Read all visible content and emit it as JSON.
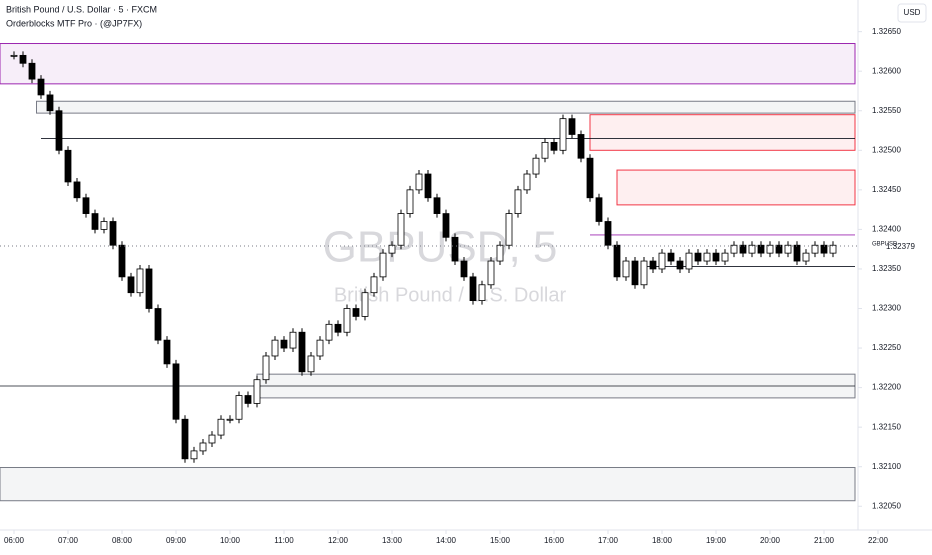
{
  "chart_data": {
    "type": "candlestick",
    "title": "British Pound / U.S. Dollar · 5 · FXCM",
    "subtitle": "Orderblocks MTF Pro · (@JP7FX)",
    "watermark": "GBPUSD, 5",
    "watermark_subtitle": "British Pound / U.S. Dollar",
    "currency": "USD",
    "symbol": "GBPUSD",
    "last_price": {
      "value": 1.32379,
      "label": "1.32379"
    },
    "closes": [
      1.3262,
      1.3261,
      1.3259,
      1.3257,
      1.3255,
      1.325,
      1.3246,
      1.3244,
      1.3242,
      1.324,
      1.3241,
      1.3238,
      1.3234,
      1.3232,
      1.3235,
      1.323,
      1.3226,
      1.3223,
      1.3216,
      1.3211,
      1.3212,
      1.3213,
      1.3214,
      1.3216,
      1.3216,
      1.3219,
      1.3218,
      1.3221,
      1.3224,
      1.3226,
      1.3225,
      1.3227,
      1.3222,
      1.3224,
      1.3226,
      1.3228,
      1.3227,
      1.323,
      1.3229,
      1.3232,
      1.3234,
      1.3237,
      1.3238,
      1.3242,
      1.3245,
      1.3247,
      1.3244,
      1.3242,
      1.3239,
      1.3236,
      1.3234,
      1.3231,
      1.3233,
      1.3236,
      1.3238,
      1.3242,
      1.3245,
      1.3247,
      1.3249,
      1.3251,
      1.325,
      1.3254,
      1.3252,
      1.3249,
      1.3244,
      1.3241,
      1.3238,
      1.3234,
      1.3236,
      1.3233,
      1.3236,
      1.3235,
      1.3237,
      1.3236,
      1.3235,
      1.3237,
      1.3236,
      1.3237,
      1.3236,
      1.3237,
      1.3238,
      1.3237,
      1.3238,
      1.3237,
      1.3238,
      1.3237,
      1.3238,
      1.3236,
      1.3237,
      1.3238,
      1.3237,
      1.3238
    ],
    "zones": [
      {
        "start": 0,
        "low": 1.32584,
        "high": 1.32635,
        "color": "#9c27b0"
      },
      {
        "start": 2.5,
        "low": 1.32547,
        "high": 1.32562,
        "color": "#787b86"
      },
      {
        "start": 64,
        "low": 1.325,
        "high": 1.32545,
        "color": "#f23645"
      },
      {
        "start": 67,
        "low": 1.32431,
        "high": 1.32475,
        "color": "#f23645"
      },
      {
        "start": 27,
        "low": 1.32187,
        "high": 1.32217,
        "color": "#787b86"
      },
      {
        "start": 0,
        "low": 1.32057,
        "high": 1.32099,
        "color": "#787b86"
      }
    ],
    "lines": [
      {
        "start": 3,
        "price": 1.32515,
        "color": "#131722"
      },
      {
        "start": 64,
        "price": 1.32393,
        "color": "#9c27b0"
      },
      {
        "start": 70,
        "price": 1.32353,
        "color": "#131722"
      },
      {
        "start": 0,
        "price": 1.32202,
        "color": "#131722"
      }
    ],
    "xlim": [
      0,
      96
    ],
    "xticks": [
      {
        "value": 0,
        "label": "06:00"
      },
      {
        "value": 6,
        "label": "07:00"
      },
      {
        "value": 12,
        "label": "08:00"
      },
      {
        "value": 18,
        "label": "09:00"
      },
      {
        "value": 24,
        "label": "10:00"
      },
      {
        "value": 30,
        "label": "11:00"
      },
      {
        "value": 36,
        "label": "12:00"
      },
      {
        "value": 42,
        "label": "13:00"
      },
      {
        "value": 48,
        "label": "14:00"
      },
      {
        "value": 54,
        "label": "15:00"
      },
      {
        "value": 60,
        "label": "16:00"
      },
      {
        "value": 66,
        "label": "17:00"
      },
      {
        "value": 72,
        "label": "18:00"
      },
      {
        "value": 78,
        "label": "19:00"
      },
      {
        "value": 84,
        "label": "20:00"
      },
      {
        "value": 90,
        "label": "21:00"
      },
      {
        "value": 96,
        "label": "22:00"
      }
    ],
    "ylim": [
      1.3202,
      1.3269
    ],
    "yticks": [
      {
        "value": 1.3205,
        "label": "1.32050"
      },
      {
        "value": 1.321,
        "label": "1.32100"
      },
      {
        "value": 1.3215,
        "label": "1.32150"
      },
      {
        "value": 1.322,
        "label": "1.32200"
      },
      {
        "value": 1.3225,
        "label": "1.32250"
      },
      {
        "value": 1.323,
        "label": "1.32300"
      },
      {
        "value": 1.3235,
        "label": "1.32350"
      },
      {
        "value": 1.324,
        "label": "1.32400"
      },
      {
        "value": 1.3245,
        "label": "1.32450"
      },
      {
        "value": 1.325,
        "label": "1.32500"
      },
      {
        "value": 1.3255,
        "label": "1.32550"
      },
      {
        "value": 1.326,
        "label": "1.32600"
      },
      {
        "value": 1.3265,
        "label": "1.32650"
      }
    ],
    "up_color": "#ffffff",
    "down_color": "#000000"
  }
}
